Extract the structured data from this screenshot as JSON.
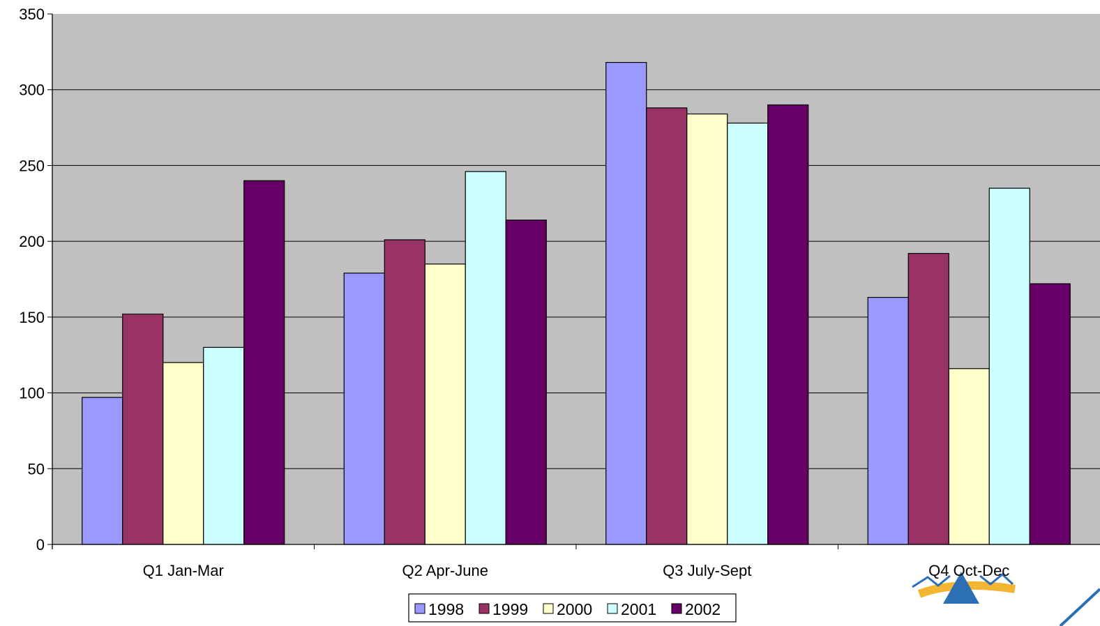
{
  "chart_data": {
    "type": "bar",
    "categories": [
      "Q1 Jan-Mar",
      "Q2 Apr-June",
      "Q3 July-Sept",
      "Q4 Oct-Dec"
    ],
    "series": [
      {
        "name": "1998",
        "color": "#9999FF",
        "values": [
          97,
          179,
          318,
          163
        ]
      },
      {
        "name": "1999",
        "color": "#993366",
        "values": [
          152,
          201,
          288,
          192
        ]
      },
      {
        "name": "2000",
        "color": "#FFFFCC",
        "values": [
          120,
          185,
          284,
          116
        ]
      },
      {
        "name": "2001",
        "color": "#CCFFFF",
        "values": [
          130,
          246,
          278,
          235
        ]
      },
      {
        "name": "2002",
        "color": "#660066",
        "values": [
          240,
          214,
          290,
          172
        ]
      }
    ],
    "ylim": [
      0,
      350
    ],
    "yticks": [
      "0",
      "50",
      "100",
      "150",
      "200",
      "250",
      "300",
      "350"
    ],
    "grid": true,
    "legend_position": "bottom-center",
    "plot_background": "#C0C0C0"
  }
}
